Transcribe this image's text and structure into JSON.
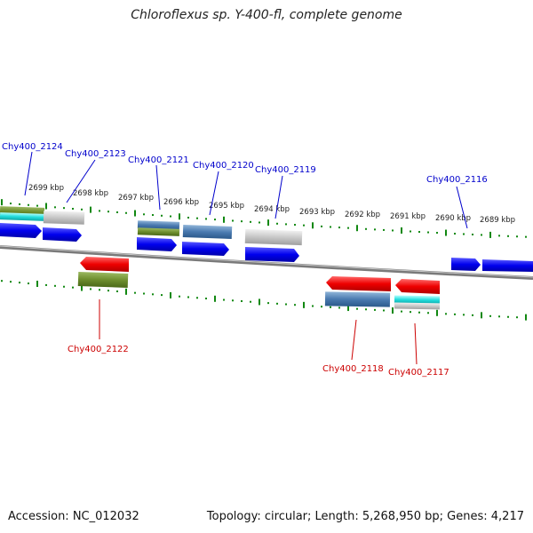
{
  "title": "Chloroflexus sp. Y-400-fl, complete genome",
  "footer": {
    "accession": "Accession: NC_012032",
    "summary": "Topology: circular; Length: 5,268,950 bp; Genes: 4,217"
  },
  "scale_labels": [
    "2699 kbp",
    "2698 kbp",
    "2697 kbp",
    "2696 kbp",
    "2695 kbp",
    "2694 kbp",
    "2693 kbp",
    "2692 kbp",
    "2691 kbp",
    "2690 kbp",
    "2689 kbp"
  ],
  "gene_labels": {
    "top": [
      "Chy400_2124",
      "Chy400_2123",
      "Chy400_2121",
      "Chy400_2120",
      "Chy400_2119",
      "Chy400_2116"
    ],
    "bottom": [
      "Chy400_2122",
      "Chy400_2118",
      "Chy400_2117"
    ]
  },
  "colors": {
    "forward_label": "#0000cc",
    "reverse_label": "#cc0000",
    "tick": "#118811",
    "backbone": "#888888",
    "blue_gene": "#0000ee",
    "red_gene": "#ee0000"
  }
}
